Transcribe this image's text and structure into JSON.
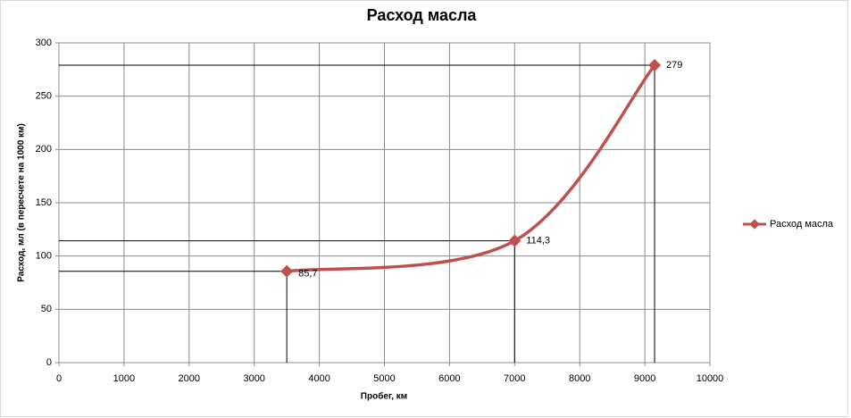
{
  "chart_data": {
    "type": "scatter-smooth",
    "title": "Расход масла",
    "x_label": "Пробег, км",
    "y_label": "Расход, мл (в пересчете на 1000 км)",
    "series": [
      {
        "name": "Расход масла",
        "color": "#c0504d",
        "x": [
          3500,
          7000,
          9150
        ],
        "values": [
          85.7,
          114.3,
          279
        ],
        "value_labels": [
          "85,7",
          "114,3",
          "279"
        ]
      }
    ],
    "xlim": [
      0,
      10000
    ],
    "xticks": [
      0,
      1000,
      2000,
      3000,
      4000,
      5000,
      6000,
      7000,
      8000,
      9000,
      10000
    ],
    "ylim": [
      0,
      300
    ],
    "yticks": [
      0,
      50,
      100,
      150,
      200,
      250,
      300
    ],
    "grid": true,
    "drop_lines": true,
    "legend": "right"
  }
}
